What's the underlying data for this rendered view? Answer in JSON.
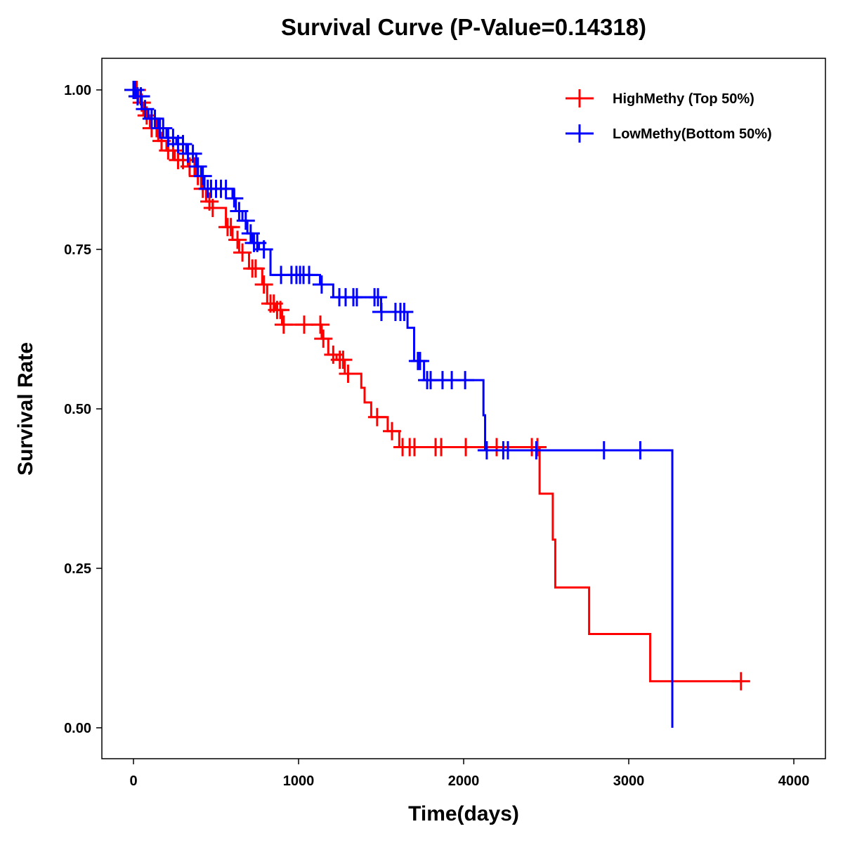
{
  "chart_data": {
    "type": "line",
    "subtype": "kaplan-meier step",
    "title": "Survival Curve (P-Value=0.14318)",
    "xlabel": "Time(days)",
    "ylabel": "Survival Rate",
    "xlim": [
      -200,
      4200
    ],
    "ylim": [
      -0.05,
      1.05
    ],
    "xticks": [
      0,
      1000,
      2000,
      3000,
      4000
    ],
    "xtick_labels": [
      "0",
      "1000",
      "2000",
      "3000",
      "4000"
    ],
    "yticks": [
      0,
      0.25,
      0.5,
      0.75,
      1.0
    ],
    "ytick_labels": [
      "0.00",
      "0.25",
      "0.50",
      "0.75",
      "1.00"
    ],
    "grid": false,
    "legend_position": "top-right",
    "series": [
      {
        "name": "HighMethy (Top 50%)",
        "color": "#ff0000",
        "steps": [
          [
            0,
            1.0
          ],
          [
            30,
            0.98
          ],
          [
            60,
            0.96
          ],
          [
            100,
            0.94
          ],
          [
            150,
            0.92
          ],
          [
            200,
            0.905
          ],
          [
            250,
            0.89
          ],
          [
            330,
            0.88
          ],
          [
            380,
            0.865
          ],
          [
            410,
            0.845
          ],
          [
            440,
            0.825
          ],
          [
            480,
            0.815
          ],
          [
            560,
            0.785
          ],
          [
            600,
            0.765
          ],
          [
            640,
            0.745
          ],
          [
            700,
            0.72
          ],
          [
            780,
            0.695
          ],
          [
            810,
            0.665
          ],
          [
            860,
            0.655
          ],
          [
            900,
            0.632
          ],
          [
            1140,
            0.61
          ],
          [
            1180,
            0.585
          ],
          [
            1230,
            0.577
          ],
          [
            1280,
            0.555
          ],
          [
            1380,
            0.533
          ],
          [
            1400,
            0.51
          ],
          [
            1440,
            0.487
          ],
          [
            1540,
            0.465
          ],
          [
            1610,
            0.44
          ],
          [
            2460,
            0.367
          ],
          [
            2540,
            0.295
          ],
          [
            2555,
            0.22
          ],
          [
            2760,
            0.147
          ],
          [
            3130,
            0.073
          ],
          [
            3680,
            0.073
          ]
        ],
        "censored": [
          20,
          50,
          80,
          110,
          140,
          170,
          210,
          240,
          270,
          300,
          340,
          370,
          390,
          420,
          460,
          480,
          570,
          590,
          630,
          660,
          720,
          740,
          790,
          830,
          850,
          870,
          890,
          910,
          1034,
          1132,
          1150,
          1210,
          1250,
          1270,
          1300,
          1476,
          1566,
          1630,
          1673,
          1702,
          1830,
          1864,
          2013,
          2200,
          2413,
          2447,
          3680
        ]
      },
      {
        "name": "LowMethy(Bottom 50%)",
        "color": "#0000ff",
        "steps": [
          [
            0,
            1.0
          ],
          [
            20,
            0.99
          ],
          [
            50,
            0.97
          ],
          [
            90,
            0.955
          ],
          [
            150,
            0.94
          ],
          [
            200,
            0.925
          ],
          [
            260,
            0.915
          ],
          [
            320,
            0.9
          ],
          [
            380,
            0.88
          ],
          [
            410,
            0.865
          ],
          [
            430,
            0.845
          ],
          [
            600,
            0.83
          ],
          [
            620,
            0.81
          ],
          [
            660,
            0.795
          ],
          [
            690,
            0.775
          ],
          [
            720,
            0.76
          ],
          [
            760,
            0.75
          ],
          [
            830,
            0.71
          ],
          [
            1130,
            0.695
          ],
          [
            1210,
            0.675
          ],
          [
            1500,
            0.652
          ],
          [
            1660,
            0.627
          ],
          [
            1700,
            0.575
          ],
          [
            1760,
            0.545
          ],
          [
            2120,
            0.49
          ],
          [
            2130,
            0.435
          ],
          [
            3264,
            0.435
          ],
          [
            3264,
            0.0
          ]
        ],
        "censored": [
          0,
          10,
          25,
          45,
          70,
          110,
          130,
          160,
          180,
          210,
          240,
          270,
          300,
          330,
          360,
          390,
          420,
          450,
          470,
          500,
          530,
          560,
          610,
          640,
          680,
          710,
          730,
          750,
          790,
          894,
          957,
          987,
          1009,
          1030,
          1064,
          1140,
          1247,
          1285,
          1332,
          1353,
          1460,
          1481,
          1502,
          1587,
          1617,
          1640,
          1723,
          1736,
          1779,
          1800,
          1872,
          1928,
          2009,
          2140,
          2240,
          2268,
          2440,
          2850,
          3070
        ]
      }
    ]
  }
}
